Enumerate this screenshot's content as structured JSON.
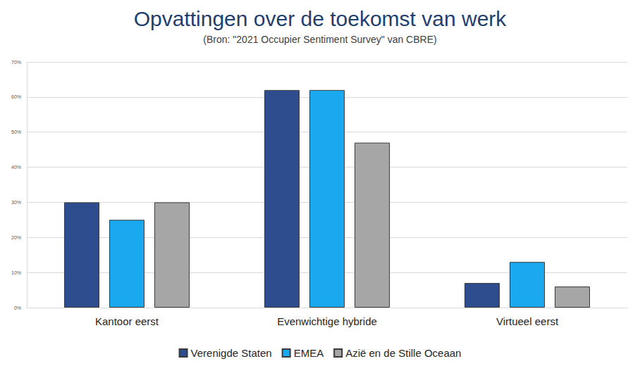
{
  "chart_data": {
    "type": "bar",
    "title": "Opvattingen over de toekomst van werk",
    "subtitle": "(Bron: \"2021 Occupier Sentiment Survey\" van CBRE)",
    "categories": [
      "Kantoor eerst",
      "Evenwichtige hybride",
      "Virtueel eerst"
    ],
    "series": [
      {
        "name": "Verenigde Staten",
        "color": "#2e4d8f",
        "values": [
          30,
          62,
          7
        ]
      },
      {
        "name": "EMEA",
        "color": "#1aa9ee",
        "values": [
          25,
          62,
          13
        ]
      },
      {
        "name": "Azië en de Stille Oceaan",
        "color": "#a6a6a6",
        "values": [
          30,
          47,
          6
        ]
      }
    ],
    "ylim": [
      0,
      70
    ],
    "yticks": [
      {
        "value": 0,
        "label": "0%"
      },
      {
        "value": 10,
        "label": "10%"
      },
      {
        "value": 20,
        "label": "20%"
      },
      {
        "value": 30,
        "label": "30%"
      },
      {
        "value": 40,
        "label": "40%"
      },
      {
        "value": 50,
        "label": "50%"
      },
      {
        "value": 60,
        "label": "60%"
      },
      {
        "value": 70,
        "label": "70%"
      }
    ],
    "grid": true,
    "legend": "bottom"
  }
}
